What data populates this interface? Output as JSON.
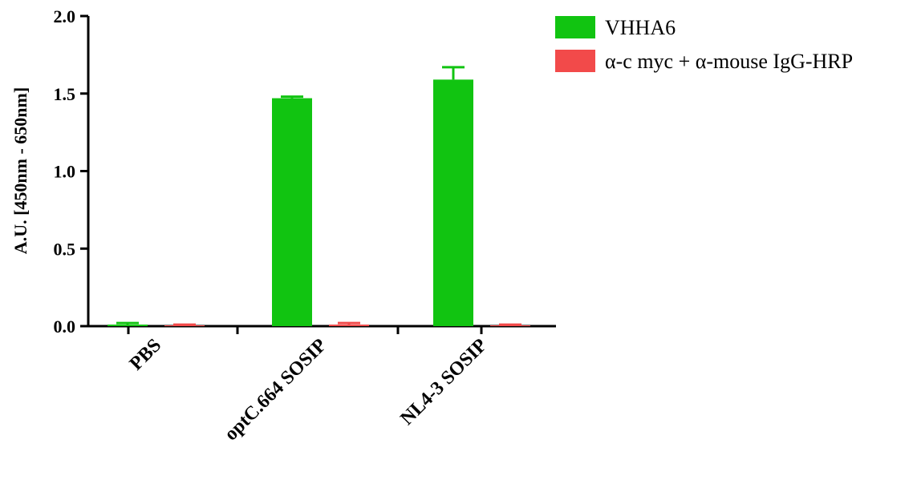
{
  "chart_data": {
    "type": "bar",
    "title": "",
    "xlabel": "",
    "ylabel": "A.U. [450nm - 650nm]",
    "categories": [
      "PBS",
      "optC.664 SOSIP",
      "NL4-3 SOSIP"
    ],
    "ylim": [
      0,
      2.0
    ],
    "yticks": [
      "0.0",
      "0.5",
      "1.0",
      "1.5",
      "2.0"
    ],
    "grid": false,
    "legend_position": "top-right",
    "series": [
      {
        "name": "VHHA6",
        "color": "#11c411",
        "values": [
          0.01,
          1.47,
          1.59
        ],
        "errors": [
          0.01,
          0.01,
          0.08
        ]
      },
      {
        "name": "α-c myc + α-mouse IgG-HRP",
        "color": "#f24a4a",
        "values": [
          0.005,
          0.01,
          0.005
        ],
        "errors": [
          0.005,
          0.01,
          0.005
        ]
      }
    ]
  }
}
